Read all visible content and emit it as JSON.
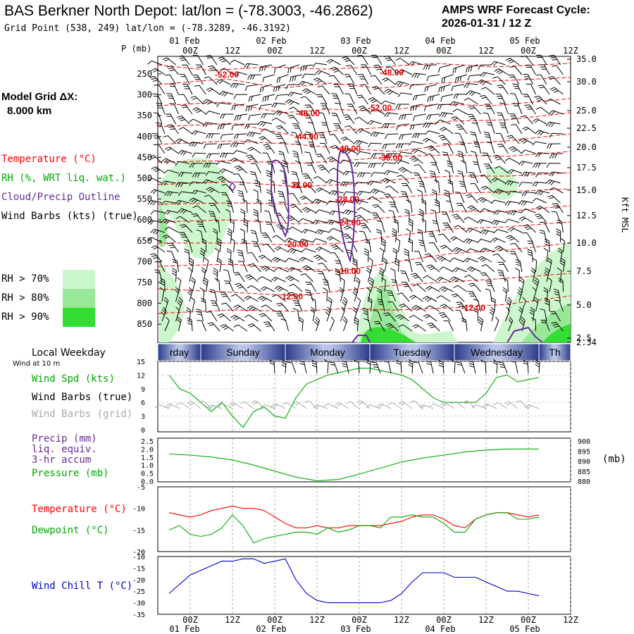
{
  "header": {
    "station_line": "BAS Berkner North Depot:  lat/lon = (-78.3003, -46.2862)",
    "grid_line": "Grid Point (538, 249) lat/lon = (-78.3289, -46.3192)",
    "cycle_label": "AMPS WRF Forecast Cycle:",
    "cycle_value": "2026-01-31 / 12  Z"
  },
  "colors": {
    "temperature": "#ff0000",
    "rh": "#00aa00",
    "cloud_outline": "#6a2a9a",
    "rh70": "#ccf7cc",
    "rh80": "#99e899",
    "rh90": "#33dd33",
    "wind_chill": "#0000cc",
    "gray_barbs": "#aaaaaa",
    "day_band_dark": "#2a3a8a",
    "day_band_light": "#b8c4e8"
  },
  "left_legend": {
    "model_grid_label": "Model Grid ΔX:",
    "model_grid_value": "8.000 km",
    "temperature": "Temperature (°C)",
    "rh": "RH (%, WRT liq. wat.)",
    "cloud": "Cloud/Precip Outline",
    "wind_barbs": "Wind Barbs (kts) (true)",
    "rh70": "RH > 70%",
    "rh80": "RH > 80%",
    "rh90": "RH > 90%"
  },
  "time_axis": {
    "top_ticks": [
      "00Z",
      "12Z",
      "00Z",
      "12Z",
      "00Z",
      "12Z",
      "00Z",
      "12Z",
      "00Z",
      "12Z"
    ],
    "top_dates": [
      "01 Feb",
      "02 Feb",
      "03 Feb",
      "04 Feb",
      "05 Feb"
    ],
    "bottom_ticks": [
      "00Z",
      "12Z",
      "00Z",
      "12Z",
      "00Z",
      "12Z",
      "00Z",
      "12Z",
      "00Z",
      "12Z"
    ],
    "bottom_dates": [
      "01 Feb",
      "02 Feb",
      "03 Feb",
      "04 Feb",
      "05 Feb"
    ]
  },
  "weekday_band": {
    "label_line1": "Local Weekday",
    "label_line2": "Wind at 10 m",
    "days": [
      "rday",
      "Sunday",
      "Monday",
      "Tuesday",
      "Wednesday",
      "Th"
    ]
  },
  "chart_data": [
    {
      "type": "contour",
      "name": "cross_section",
      "ylabel_left": "P (mb)",
      "ylabel_right": "Kft MSL",
      "pressure_ticks": [
        "250",
        "300",
        "350",
        "400",
        "450",
        "500",
        "550",
        "600",
        "650",
        "700",
        "750",
        "800",
        "850"
      ],
      "height_ticks": [
        "35.0",
        "30.0",
        "25.0",
        "22.5",
        "20.0",
        "17.5",
        "15.0",
        "12.5",
        "10.0",
        "7.5",
        "5.0",
        "2.5",
        "2.34"
      ],
      "isotherm_labels": [
        "-52.00",
        "-48.00",
        "-48.00",
        "-52.00",
        "-44.00",
        "-40.00",
        "-36.00",
        "-32.00",
        "-28.00",
        "-24.00",
        "-20.00",
        "-16.00",
        "-12.00",
        "-12.00"
      ]
    },
    {
      "type": "line",
      "name": "wind_speed",
      "legend": [
        "Wind Spd (kts)",
        "Wind Barbs (true)",
        "Wind Barbs (grid)"
      ],
      "yticks": [
        "15",
        "12",
        "9",
        "6",
        "3",
        "0"
      ],
      "ylim": [
        0,
        15
      ],
      "x_hours": [
        0,
        3,
        6,
        9,
        12,
        15,
        18,
        21,
        24,
        27,
        30,
        33,
        36,
        39,
        42,
        45,
        48,
        51,
        54,
        57,
        60,
        63,
        66,
        69,
        72,
        75,
        78,
        81,
        84,
        87,
        90,
        93,
        96,
        99,
        102,
        105
      ],
      "values": [
        12,
        9,
        8,
        6,
        4,
        6,
        3,
        0.5,
        4,
        5,
        3,
        2.5,
        7,
        10,
        11,
        12,
        12.5,
        13,
        13.5,
        13.5,
        13,
        12.5,
        12,
        11,
        9,
        7,
        6,
        6,
        6,
        6,
        8,
        11.5,
        12,
        10.5,
        11,
        11.5
      ]
    },
    {
      "type": "line",
      "name": "precip_pressure",
      "legend": [
        "Precip (mm)",
        "liq. equiv.",
        "3-hr accum",
        "Pressure (mb)"
      ],
      "ylabel_right": "(mb)",
      "yticks_left": [
        "2.5",
        "2.0",
        "1.5",
        "1.0",
        "0.5",
        "0.0"
      ],
      "yticks_right": [
        "900",
        "895",
        "890",
        "885",
        "880"
      ],
      "precip_ylim": [
        0,
        2.5
      ],
      "pressure_ylim": [
        880,
        900
      ],
      "x_hours": [
        0,
        6,
        12,
        18,
        24,
        30,
        36,
        42,
        48,
        54,
        60,
        66,
        72,
        78,
        84,
        90,
        96,
        105
      ],
      "pressure": [
        893.5,
        893,
        892,
        890.5,
        888,
        885,
        882,
        880.2,
        880.8,
        883.5,
        886.5,
        889.5,
        891.5,
        893,
        894.5,
        895.5,
        896,
        896
      ],
      "precip": [
        0,
        0,
        0,
        0,
        0,
        0,
        0,
        0,
        0,
        0,
        0,
        0,
        0,
        0,
        0,
        0,
        0,
        0
      ]
    },
    {
      "type": "line",
      "name": "temp_dewpoint",
      "legend": [
        "Temperature (°C)",
        "Dewpoint (°C)"
      ],
      "yticks": [
        "-5",
        "-10",
        "-15",
        "-20"
      ],
      "ylim": [
        -20,
        -5
      ],
      "x_hours": [
        0,
        3,
        6,
        9,
        12,
        15,
        18,
        21,
        24,
        27,
        30,
        33,
        36,
        39,
        42,
        45,
        48,
        51,
        54,
        57,
        60,
        63,
        66,
        69,
        72,
        75,
        78,
        81,
        84,
        87,
        90,
        93,
        96,
        99,
        102,
        105
      ],
      "temperature": [
        -11,
        -11.5,
        -12,
        -11.5,
        -10.5,
        -10,
        -9.5,
        -10,
        -10,
        -10.5,
        -12,
        -13.5,
        -14.5,
        -14.5,
        -14,
        -14.5,
        -14.5,
        -14,
        -14,
        -14,
        -14,
        -13.5,
        -13,
        -12,
        -11.5,
        -11.5,
        -12.5,
        -14,
        -14.5,
        -12.5,
        -11.5,
        -11,
        -11,
        -11.5,
        -12,
        -11.5
      ],
      "dewpoint": [
        -15,
        -14,
        -16,
        -16.5,
        -16,
        -14.5,
        -11.5,
        -14,
        -18,
        -17,
        -16.5,
        -16,
        -15.5,
        -15.5,
        -16,
        -14.5,
        -15.5,
        -15,
        -14,
        -14,
        -14.5,
        -12,
        -12,
        -11.5,
        -12,
        -12,
        -13.5,
        -15.5,
        -15.5,
        -12.5,
        -11.5,
        -11,
        -11,
        -12.5,
        -12.5,
        -12
      ]
    },
    {
      "type": "line",
      "name": "wind_chill",
      "legend": [
        "Wind Chill T (°C)"
      ],
      "yticks": [
        "-10",
        "-15",
        "-20",
        "-25",
        "-30",
        "-35"
      ],
      "ylim": [
        -35,
        -10
      ],
      "x_hours": [
        0,
        3,
        6,
        9,
        12,
        15,
        18,
        21,
        24,
        27,
        30,
        33,
        36,
        39,
        42,
        45,
        48,
        51,
        54,
        57,
        60,
        63,
        66,
        69,
        72,
        75,
        78,
        81,
        84,
        87,
        90,
        93,
        96,
        99,
        102,
        105
      ],
      "values": [
        -26,
        -22,
        -18,
        -16,
        -14,
        -12,
        -12,
        -11,
        -11,
        -13,
        -12,
        -11,
        -20,
        -26,
        -29,
        -30,
        -30,
        -30,
        -30,
        -30,
        -30,
        -29,
        -26,
        -21,
        -17,
        -17,
        -17,
        -19,
        -19,
        -19,
        -21,
        -23,
        -25,
        -25,
        -26,
        -27
      ]
    }
  ]
}
